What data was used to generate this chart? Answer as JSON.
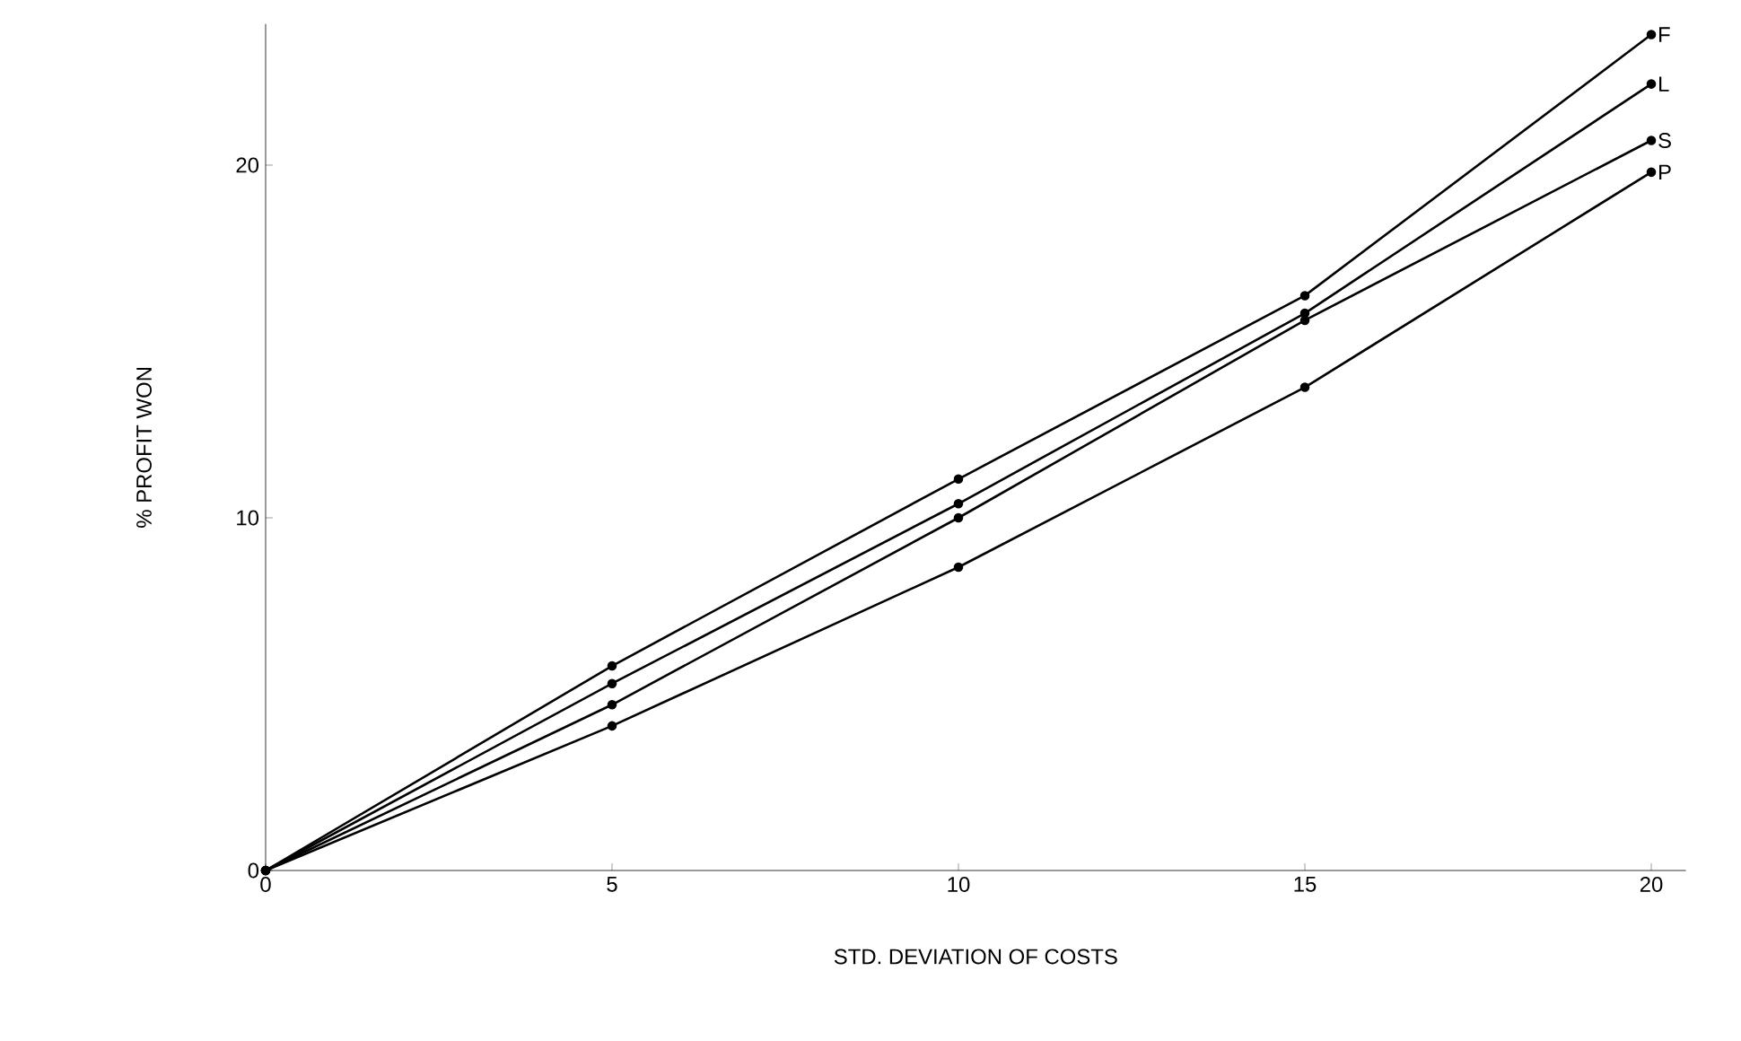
{
  "chart_data": {
    "type": "line",
    "xlabel": "STD. DEVIATION OF COSTS",
    "ylabel": "% PROFIT WON",
    "x": [
      0,
      5,
      10,
      15,
      20
    ],
    "series": [
      {
        "name": "F",
        "color": "#000000",
        "values": [
          0,
          5.8,
          11.1,
          16.3,
          23.7
        ]
      },
      {
        "name": "L",
        "color": "#000000",
        "values": [
          0,
          5.3,
          10.4,
          15.8,
          22.3
        ]
      },
      {
        "name": "S",
        "color": "#000000",
        "values": [
          0,
          4.7,
          10.0,
          15.6,
          20.7
        ]
      },
      {
        "name": "P",
        "color": "#000000",
        "values": [
          0,
          4.1,
          8.6,
          13.7,
          19.8
        ]
      }
    ],
    "xlim": [
      0,
      20.5
    ],
    "ylim": [
      0,
      24
    ],
    "xticks": [
      0,
      5,
      10,
      15,
      20
    ],
    "yticks": [
      0,
      10,
      20
    ],
    "marker": "circle",
    "line_style": "solid",
    "grid": false
  }
}
